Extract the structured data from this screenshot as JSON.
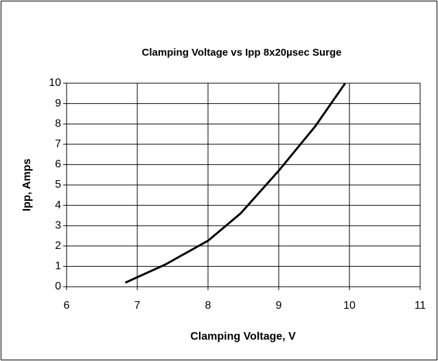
{
  "chart_data": {
    "type": "line",
    "title": "Clamping Voltage vs Ipp 8x20µsec Surge",
    "x_label": "Clamping Voltage, V",
    "y_label": "Ipp, Amps",
    "x": [
      6.83,
      7,
      7.39,
      8,
      8.46,
      9,
      9.52,
      9.94
    ],
    "series": [
      {
        "color": "#000000",
        "values": [
          0.2,
          0.47,
          1.08,
          2.26,
          3.6,
          5.7,
          7.9,
          10
        ]
      }
    ],
    "xlim": [
      6,
      11
    ],
    "xticks": [
      6,
      7,
      8,
      9,
      10,
      11
    ],
    "ylim": [
      0,
      10
    ],
    "yticks": [
      0,
      1,
      2,
      3,
      4,
      5,
      6,
      7,
      8,
      9,
      10
    ],
    "grid": true
  }
}
